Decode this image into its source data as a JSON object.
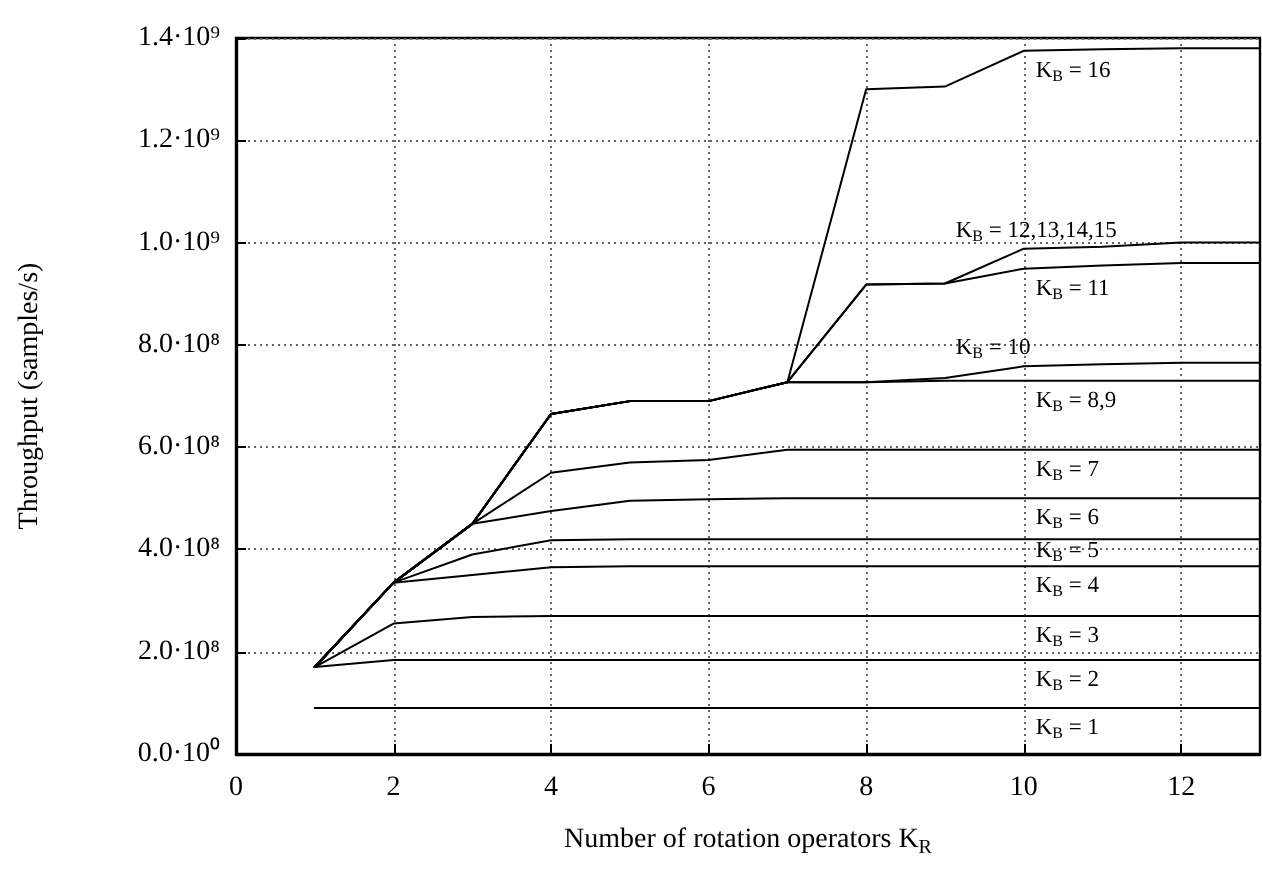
{
  "chart_data": {
    "type": "line",
    "xlabel": "Number of rotation operators K$_{R}$",
    "ylabel": "Throughput (samples/s)",
    "x": [
      1,
      2,
      3,
      4,
      5,
      6,
      7,
      8,
      9,
      10,
      11,
      12,
      13
    ],
    "xlim": [
      0,
      13
    ],
    "xticks": [
      0,
      2,
      4,
      6,
      8,
      10,
      12
    ],
    "ylim": [
      0,
      1400000000
    ],
    "yticks": [
      {
        "value": 0,
        "label": "0.0·10⁰"
      },
      {
        "value": 200000000,
        "label": "2.0·10⁸"
      },
      {
        "value": 400000000,
        "label": "4.0·10⁸"
      },
      {
        "value": 600000000,
        "label": "6.0·10⁸"
      },
      {
        "value": 800000000,
        "label": "8.0·10⁸"
      },
      {
        "value": 1000000000,
        "label": "1.0·10⁹"
      },
      {
        "value": 1200000000,
        "label": "1.2·10⁹"
      },
      {
        "value": 1400000000,
        "label": "1.4·10⁹"
      }
    ],
    "grid": true,
    "marker": "none",
    "line_style": "solid",
    "legend": false,
    "series": [
      {
        "name": "K$_{B}$ = 1",
        "color": "#000000",
        "values": [
          90000000,
          90000000,
          90000000,
          90000000,
          90000000,
          90000000,
          90000000,
          90000000,
          90000000,
          90000000,
          90000000,
          90000000,
          90000000
        ]
      },
      {
        "name": "K$_{B}$ = 2",
        "color": "#000000",
        "values": [
          170000000,
          184000000,
          184000000,
          184000000,
          184000000,
          184000000,
          184000000,
          184000000,
          184000000,
          184000000,
          184000000,
          184000000,
          184000000
        ]
      },
      {
        "name": "K$_{B}$ = 3",
        "color": "#000000",
        "values": [
          170000000,
          255000000,
          268000000,
          270000000,
          270000000,
          270000000,
          270000000,
          270000000,
          270000000,
          270000000,
          270000000,
          270000000,
          270000000
        ]
      },
      {
        "name": "K$_{B}$ = 4",
        "color": "#000000",
        "values": [
          170000000,
          335000000,
          350000000,
          365000000,
          367000000,
          367000000,
          367000000,
          367000000,
          367000000,
          367000000,
          367000000,
          367000000,
          367000000
        ]
      },
      {
        "name": "K$_{B}$ = 5",
        "color": "#000000",
        "values": [
          170000000,
          335000000,
          390000000,
          418000000,
          420000000,
          420000000,
          420000000,
          420000000,
          420000000,
          420000000,
          420000000,
          420000000,
          420000000
        ]
      },
      {
        "name": "K$_{B}$ = 6",
        "color": "#000000",
        "values": [
          170000000,
          335000000,
          450000000,
          475000000,
          495000000,
          498000000,
          500000000,
          500000000,
          500000000,
          500000000,
          500000000,
          500000000,
          500000000
        ]
      },
      {
        "name": "K$_{B}$ = 7",
        "color": "#000000",
        "values": [
          170000000,
          335000000,
          450000000,
          550000000,
          570000000,
          575000000,
          595000000,
          595000000,
          595000000,
          595000000,
          595000000,
          595000000,
          595000000
        ]
      },
      {
        "name": "K$_{B}$ = 8,9",
        "color": "#000000",
        "values": [
          170000000,
          335000000,
          450000000,
          665000000,
          690000000,
          690000000,
          727000000,
          727000000,
          730000000,
          730000000,
          730000000,
          730000000,
          730000000
        ]
      },
      {
        "name": "K$_{B}$ = 10",
        "color": "#000000",
        "values": [
          170000000,
          335000000,
          450000000,
          665000000,
          690000000,
          690000000,
          727000000,
          727000000,
          735000000,
          758000000,
          762000000,
          765000000,
          765000000
        ]
      },
      {
        "name": "K$_{B}$ = 11",
        "color": "#000000",
        "values": [
          170000000,
          335000000,
          450000000,
          665000000,
          690000000,
          690000000,
          727000000,
          918000000,
          920000000,
          949000000,
          955000000,
          960000000,
          960000000
        ]
      },
      {
        "name": "K$_{B}$ = 12,13,14,15",
        "color": "#000000",
        "values": [
          170000000,
          335000000,
          450000000,
          665000000,
          690000000,
          690000000,
          727000000,
          918000000,
          920000000,
          988000000,
          992000000,
          1000000000,
          1000000000
        ]
      },
      {
        "name": "K$_{B}$ = 16",
        "color": "#000000",
        "values": [
          170000000,
          335000000,
          450000000,
          665000000,
          690000000,
          690000000,
          727000000,
          1300000000,
          1305000000,
          1375000000,
          1378000000,
          1380000000,
          1380000000
        ]
      }
    ]
  }
}
